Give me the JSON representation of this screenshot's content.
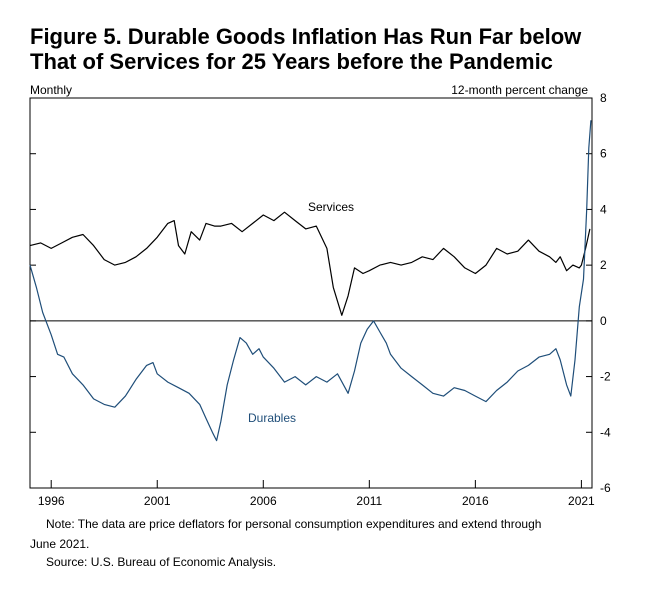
{
  "title": {
    "line1": "Figure 5. Durable Goods Inflation Has Run Far below",
    "line2": "That of Services for 25 Years before the Pandemic"
  },
  "chart_data": {
    "type": "line",
    "frequency_label": "Monthly",
    "ylabel": "12-month percent change",
    "x_tick_labels": [
      "1996",
      "2001",
      "2006",
      "2011",
      "2016",
      "2021"
    ],
    "x_range": [
      1995.0,
      2021.5
    ],
    "ylim": [
      -6,
      8
    ],
    "y_ticks": [
      -6,
      -4,
      -2,
      0,
      2,
      4,
      6,
      8
    ],
    "colors": {
      "services": "#000000",
      "durables": "#1f4e79"
    },
    "series": [
      {
        "name": "Services",
        "label": "Services",
        "points": [
          [
            1995.0,
            2.7
          ],
          [
            1995.5,
            2.8
          ],
          [
            1996.0,
            2.6
          ],
          [
            1996.5,
            2.8
          ],
          [
            1997.0,
            3.0
          ],
          [
            1997.5,
            3.1
          ],
          [
            1998.0,
            2.7
          ],
          [
            1998.5,
            2.2
          ],
          [
            1999.0,
            2.0
          ],
          [
            1999.5,
            2.1
          ],
          [
            2000.0,
            2.3
          ],
          [
            2000.5,
            2.6
          ],
          [
            2001.0,
            3.0
          ],
          [
            2001.5,
            3.5
          ],
          [
            2001.8,
            3.6
          ],
          [
            2002.0,
            2.7
          ],
          [
            2002.3,
            2.4
          ],
          [
            2002.6,
            3.2
          ],
          [
            2003.0,
            2.9
          ],
          [
            2003.3,
            3.5
          ],
          [
            2003.7,
            3.4
          ],
          [
            2004.0,
            3.4
          ],
          [
            2004.5,
            3.5
          ],
          [
            2005.0,
            3.2
          ],
          [
            2005.5,
            3.5
          ],
          [
            2006.0,
            3.8
          ],
          [
            2006.5,
            3.6
          ],
          [
            2007.0,
            3.9
          ],
          [
            2007.5,
            3.6
          ],
          [
            2008.0,
            3.3
          ],
          [
            2008.5,
            3.4
          ],
          [
            2009.0,
            2.6
          ],
          [
            2009.3,
            1.2
          ],
          [
            2009.7,
            0.2
          ],
          [
            2010.0,
            0.9
          ],
          [
            2010.3,
            1.9
          ],
          [
            2010.7,
            1.7
          ],
          [
            2011.0,
            1.8
          ],
          [
            2011.5,
            2.0
          ],
          [
            2012.0,
            2.1
          ],
          [
            2012.5,
            2.0
          ],
          [
            2013.0,
            2.1
          ],
          [
            2013.5,
            2.3
          ],
          [
            2014.0,
            2.2
          ],
          [
            2014.5,
            2.6
          ],
          [
            2015.0,
            2.3
          ],
          [
            2015.5,
            1.9
          ],
          [
            2016.0,
            1.7
          ],
          [
            2016.5,
            2.0
          ],
          [
            2017.0,
            2.6
          ],
          [
            2017.5,
            2.4
          ],
          [
            2018.0,
            2.5
          ],
          [
            2018.5,
            2.9
          ],
          [
            2019.0,
            2.5
          ],
          [
            2019.5,
            2.3
          ],
          [
            2019.8,
            2.1
          ],
          [
            2020.0,
            2.3
          ],
          [
            2020.3,
            1.8
          ],
          [
            2020.6,
            2.0
          ],
          [
            2020.9,
            1.9
          ],
          [
            2021.0,
            2.0
          ],
          [
            2021.2,
            2.6
          ],
          [
            2021.4,
            3.3
          ]
        ]
      },
      {
        "name": "Durables",
        "label": "Durables",
        "points": [
          [
            1995.0,
            2.0
          ],
          [
            1995.3,
            1.2
          ],
          [
            1995.6,
            0.3
          ],
          [
            1996.0,
            -0.5
          ],
          [
            1996.3,
            -1.2
          ],
          [
            1996.6,
            -1.3
          ],
          [
            1997.0,
            -1.9
          ],
          [
            1997.5,
            -2.3
          ],
          [
            1998.0,
            -2.8
          ],
          [
            1998.5,
            -3.0
          ],
          [
            1999.0,
            -3.1
          ],
          [
            1999.5,
            -2.7
          ],
          [
            2000.0,
            -2.1
          ],
          [
            2000.5,
            -1.6
          ],
          [
            2000.8,
            -1.5
          ],
          [
            2001.0,
            -1.9
          ],
          [
            2001.5,
            -2.2
          ],
          [
            2002.0,
            -2.4
          ],
          [
            2002.5,
            -2.6
          ],
          [
            2003.0,
            -3.0
          ],
          [
            2003.3,
            -3.5
          ],
          [
            2003.6,
            -4.0
          ],
          [
            2003.8,
            -4.3
          ],
          [
            2004.0,
            -3.6
          ],
          [
            2004.3,
            -2.3
          ],
          [
            2004.6,
            -1.4
          ],
          [
            2004.9,
            -0.6
          ],
          [
            2005.2,
            -0.8
          ],
          [
            2005.5,
            -1.2
          ],
          [
            2005.8,
            -1.0
          ],
          [
            2006.0,
            -1.3
          ],
          [
            2006.5,
            -1.7
          ],
          [
            2007.0,
            -2.2
          ],
          [
            2007.5,
            -2.0
          ],
          [
            2008.0,
            -2.3
          ],
          [
            2008.5,
            -2.0
          ],
          [
            2009.0,
            -2.2
          ],
          [
            2009.5,
            -1.9
          ],
          [
            2010.0,
            -2.6
          ],
          [
            2010.3,
            -1.8
          ],
          [
            2010.6,
            -0.8
          ],
          [
            2010.9,
            -0.3
          ],
          [
            2011.2,
            0.0
          ],
          [
            2011.5,
            -0.4
          ],
          [
            2011.8,
            -0.8
          ],
          [
            2012.0,
            -1.2
          ],
          [
            2012.5,
            -1.7
          ],
          [
            2013.0,
            -2.0
          ],
          [
            2013.5,
            -2.3
          ],
          [
            2014.0,
            -2.6
          ],
          [
            2014.5,
            -2.7
          ],
          [
            2015.0,
            -2.4
          ],
          [
            2015.5,
            -2.5
          ],
          [
            2016.0,
            -2.7
          ],
          [
            2016.5,
            -2.9
          ],
          [
            2017.0,
            -2.5
          ],
          [
            2017.5,
            -2.2
          ],
          [
            2018.0,
            -1.8
          ],
          [
            2018.5,
            -1.6
          ],
          [
            2019.0,
            -1.3
          ],
          [
            2019.5,
            -1.2
          ],
          [
            2019.8,
            -1.0
          ],
          [
            2020.0,
            -1.4
          ],
          [
            2020.3,
            -2.3
          ],
          [
            2020.5,
            -2.7
          ],
          [
            2020.7,
            -1.4
          ],
          [
            2020.9,
            0.5
          ],
          [
            2021.1,
            1.5
          ],
          [
            2021.25,
            4.0
          ],
          [
            2021.35,
            6.2
          ],
          [
            2021.45,
            7.2
          ]
        ]
      }
    ]
  },
  "note": {
    "line1": "Note:  The data are price deflators for personal consumption expenditures and extend through",
    "line2": "June 2021."
  },
  "source": "Source:  U.S. Bureau of Economic Analysis."
}
